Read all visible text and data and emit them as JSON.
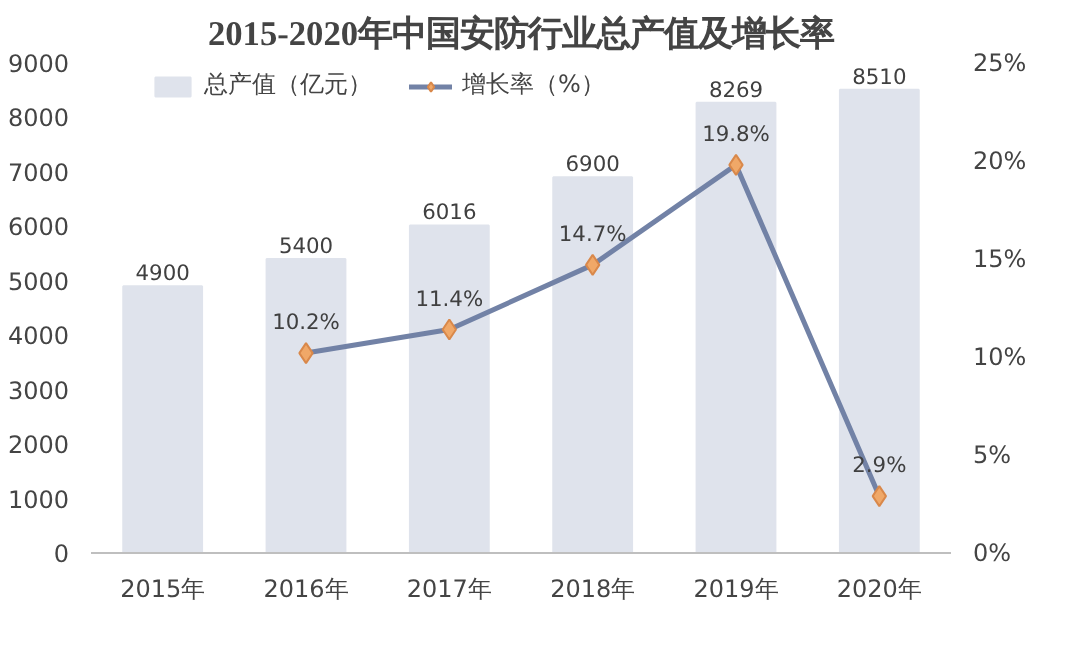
{
  "chart_data": {
    "type": "bar",
    "title": "2015-2020年中国安防行业总产值及增长率",
    "categories": [
      "2015年",
      "2016年",
      "2017年",
      "2018年",
      "2019年",
      "2020年"
    ],
    "series": [
      {
        "name": "总产值（亿元）",
        "color": "#dfe3ec",
        "values": [
          4900,
          5400,
          6016,
          6900,
          8269,
          8510
        ],
        "value_labels": [
          "4900",
          "5400",
          "6016",
          "6900",
          "8269",
          "8510"
        ]
      },
      {
        "name": "增长率（%）",
        "type": "line",
        "axis": "y2",
        "color": "#7282a6",
        "values": [
          null,
          10.2,
          11.4,
          14.7,
          19.8,
          2.9
        ],
        "value_labels": [
          null,
          "10.2%",
          "11.4%",
          "14.7%",
          "19.8%",
          "2.9%"
        ]
      }
    ],
    "ylim": [
      0,
      9000
    ],
    "yticks": [
      0,
      1000,
      2000,
      3000,
      4000,
      5000,
      6000,
      7000,
      8000,
      9000
    ],
    "y2lim": [
      0,
      25
    ],
    "y2ticks": [
      {
        "value": 0,
        "label": "0%"
      },
      {
        "value": 5,
        "label": "5%"
      },
      {
        "value": 10,
        "label": "10%"
      },
      {
        "value": 15,
        "label": "15%"
      },
      {
        "value": 20,
        "label": "20%"
      },
      {
        "value": 25,
        "label": "25%"
      }
    ],
    "marker": "diamond",
    "grid": false,
    "legend": "top"
  }
}
